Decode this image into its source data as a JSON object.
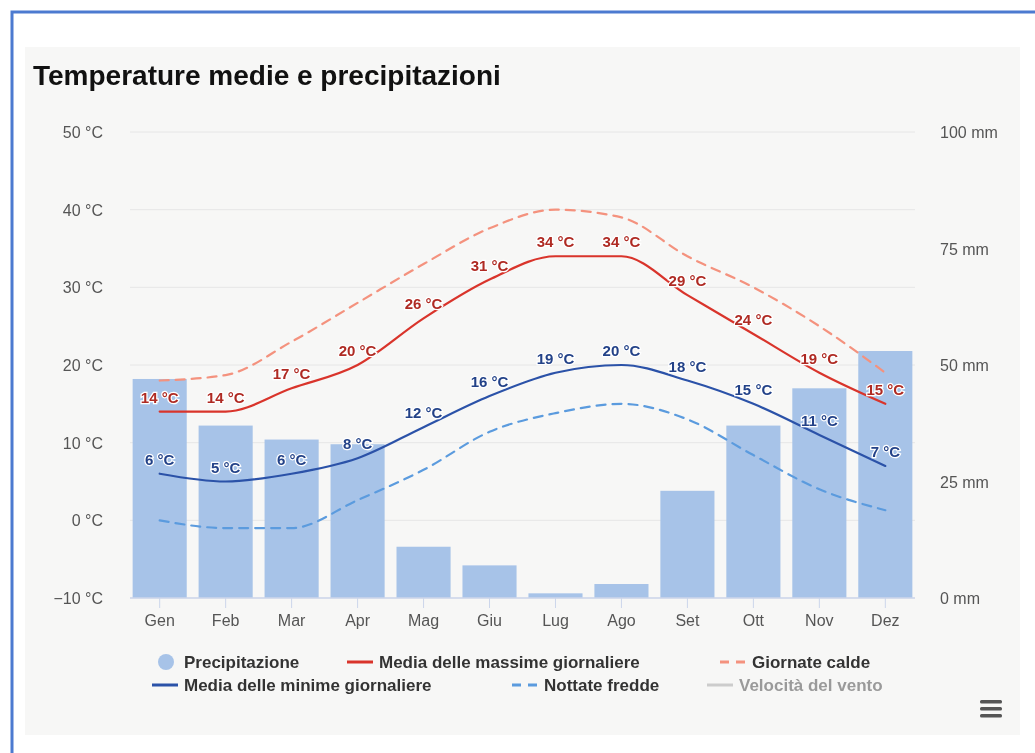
{
  "chart_data": {
    "type": "bar",
    "title": "Temperature medie e precipitazioni",
    "categories": [
      "Gen",
      "Feb",
      "Mar",
      "Apr",
      "Mag",
      "Giu",
      "Lug",
      "Ago",
      "Set",
      "Ott",
      "Nov",
      "Dez"
    ],
    "series": [
      {
        "name": "Precipitazione",
        "type": "bar",
        "axis": "y2",
        "color": "#a7c3e8",
        "values": [
          47,
          37,
          34,
          33,
          11,
          7,
          1,
          3,
          23,
          37,
          45,
          53
        ]
      },
      {
        "name": "Media delle massime giornaliere",
        "type": "line",
        "color": "#d9342b",
        "line_style": "solid",
        "values": [
          14,
          14,
          17,
          20,
          26,
          31,
          34,
          34,
          29,
          24,
          19,
          15
        ],
        "value_labels": [
          "14 °C",
          "14 °C",
          "17 °C",
          "20 °C",
          "26 °C",
          "31 °C",
          "34 °C",
          "34 °C",
          "29 °C",
          "24 °C",
          "19 °C",
          "15 °C"
        ]
      },
      {
        "name": "Giornate calde",
        "type": "line",
        "color": "#f4927e",
        "line_style": "dashed",
        "values": [
          18,
          18.7,
          23,
          28,
          33,
          37.6,
          40,
          39,
          34,
          30,
          25,
          19
        ]
      },
      {
        "name": "Media delle minime giornaliere",
        "type": "line",
        "color": "#2b52a8",
        "line_style": "solid",
        "values": [
          6,
          5,
          6,
          8,
          12,
          16,
          19,
          20,
          18,
          15,
          11,
          7
        ],
        "value_labels": [
          "6 °C",
          "5 °C",
          "6 °C",
          "8 °C",
          "12 °C",
          "16 °C",
          "19 °C",
          "20 °C",
          "18 °C",
          "15 °C",
          "11 °C",
          "7 °C"
        ]
      },
      {
        "name": "Nottate fredde",
        "type": "line",
        "color": "#5b9bde",
        "line_style": "dashed",
        "values": [
          0,
          -1,
          -1,
          2.6,
          6.5,
          11.4,
          13.8,
          15,
          13,
          8.4,
          4,
          1.3
        ]
      },
      {
        "name": "Velocità del vento",
        "type": "line",
        "color": "#cccccc",
        "line_style": "solid",
        "values": [
          null,
          null,
          null,
          null,
          null,
          null,
          null,
          null,
          null,
          null,
          null,
          null
        ]
      }
    ],
    "ylim": [
      -10,
      50
    ],
    "yticks": [
      {
        "value": -10,
        "label": "−10 °C"
      },
      {
        "value": 0,
        "label": "0 °C"
      },
      {
        "value": 10,
        "label": "10 °C"
      },
      {
        "value": 20,
        "label": "20 °C"
      },
      {
        "value": 30,
        "label": "30 °C"
      },
      {
        "value": 40,
        "label": "40 °C"
      },
      {
        "value": 50,
        "label": "50 °C"
      }
    ],
    "y2lim": [
      0,
      100
    ],
    "y2ticks": [
      {
        "value": 0,
        "label": "0 mm"
      },
      {
        "value": 25,
        "label": "25 mm"
      },
      {
        "value": 50,
        "label": "50 mm"
      },
      {
        "value": 75,
        "label": "75 mm"
      },
      {
        "value": 100,
        "label": "100 mm"
      }
    ],
    "grid": "y",
    "legend": "bottom"
  }
}
